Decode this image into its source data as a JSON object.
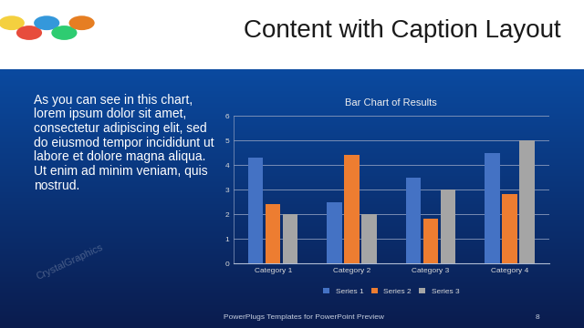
{
  "slide": {
    "title": "Content with Caption Layout",
    "caption": "As you can see in this chart, lorem ipsum dolor sit amet, consectetur adipiscing elit, sed do eiusmod tempor incididunt ut labore et dolore magna aliqua. Ut enim ad minim veniam, quis nostrud.",
    "footer": "PowerPlugs Templates for PowerPoint Preview",
    "page": "8",
    "watermark": "CrystalGraphics"
  },
  "chart_data": {
    "type": "bar",
    "title": "Bar Chart of Results",
    "categories": [
      "Category 1",
      "Category 2",
      "Category 3",
      "Category 4"
    ],
    "series": [
      {
        "name": "Series 1",
        "color": "#4472c4",
        "values": [
          4.3,
          2.5,
          3.5,
          4.5
        ]
      },
      {
        "name": "Series 2",
        "color": "#ed7d31",
        "values": [
          2.4,
          4.4,
          1.8,
          2.8
        ]
      },
      {
        "name": "Series 3",
        "color": "#a5a5a5",
        "values": [
          2,
          2,
          3,
          5
        ]
      }
    ],
    "ylim": [
      0,
      6
    ],
    "yticks": [
      0,
      1,
      2,
      3,
      4,
      5,
      6
    ],
    "grid": true,
    "legend": "bottom"
  }
}
